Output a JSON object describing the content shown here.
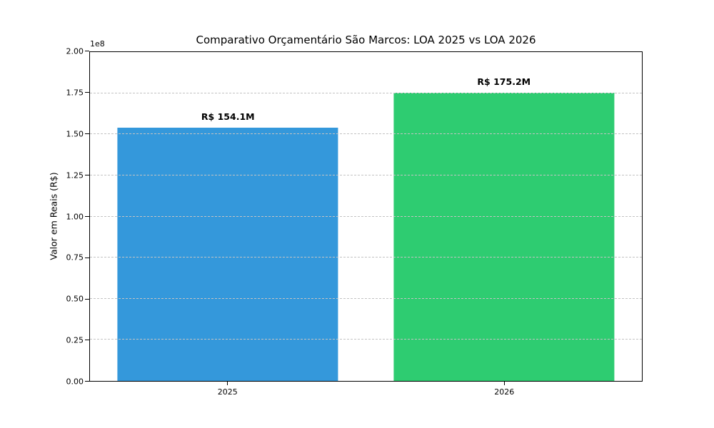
{
  "chart_data": {
    "type": "bar",
    "title": "Comparativo Orçamentário São Marcos: LOA 2025 vs LOA 2026",
    "xlabel": "",
    "ylabel": "Valor em Reais (R$)",
    "y_offset_text": "1e8",
    "categories": [
      "2025",
      "2026"
    ],
    "values": [
      154100000,
      175200000
    ],
    "bar_labels": [
      "R$ 154.1M",
      "R$ 175.2M"
    ],
    "bar_colors": [
      "#3498db",
      "#2ecc71"
    ],
    "ylim": [
      0,
      200000000
    ],
    "ytick_values": [
      0,
      25000000,
      50000000,
      75000000,
      100000000,
      125000000,
      150000000,
      175000000,
      200000000
    ],
    "ytick_labels": [
      "0.00",
      "0.25",
      "0.50",
      "0.75",
      "1.00",
      "1.25",
      "1.50",
      "1.75",
      "2.00"
    ],
    "bar_width_fraction": 0.8,
    "grid": {
      "axis": "y",
      "line_style": "dashed",
      "color": "#c3c3c3",
      "on_top": true
    },
    "legend": false,
    "text_color": "#000000",
    "background_color": "#ffffff"
  }
}
